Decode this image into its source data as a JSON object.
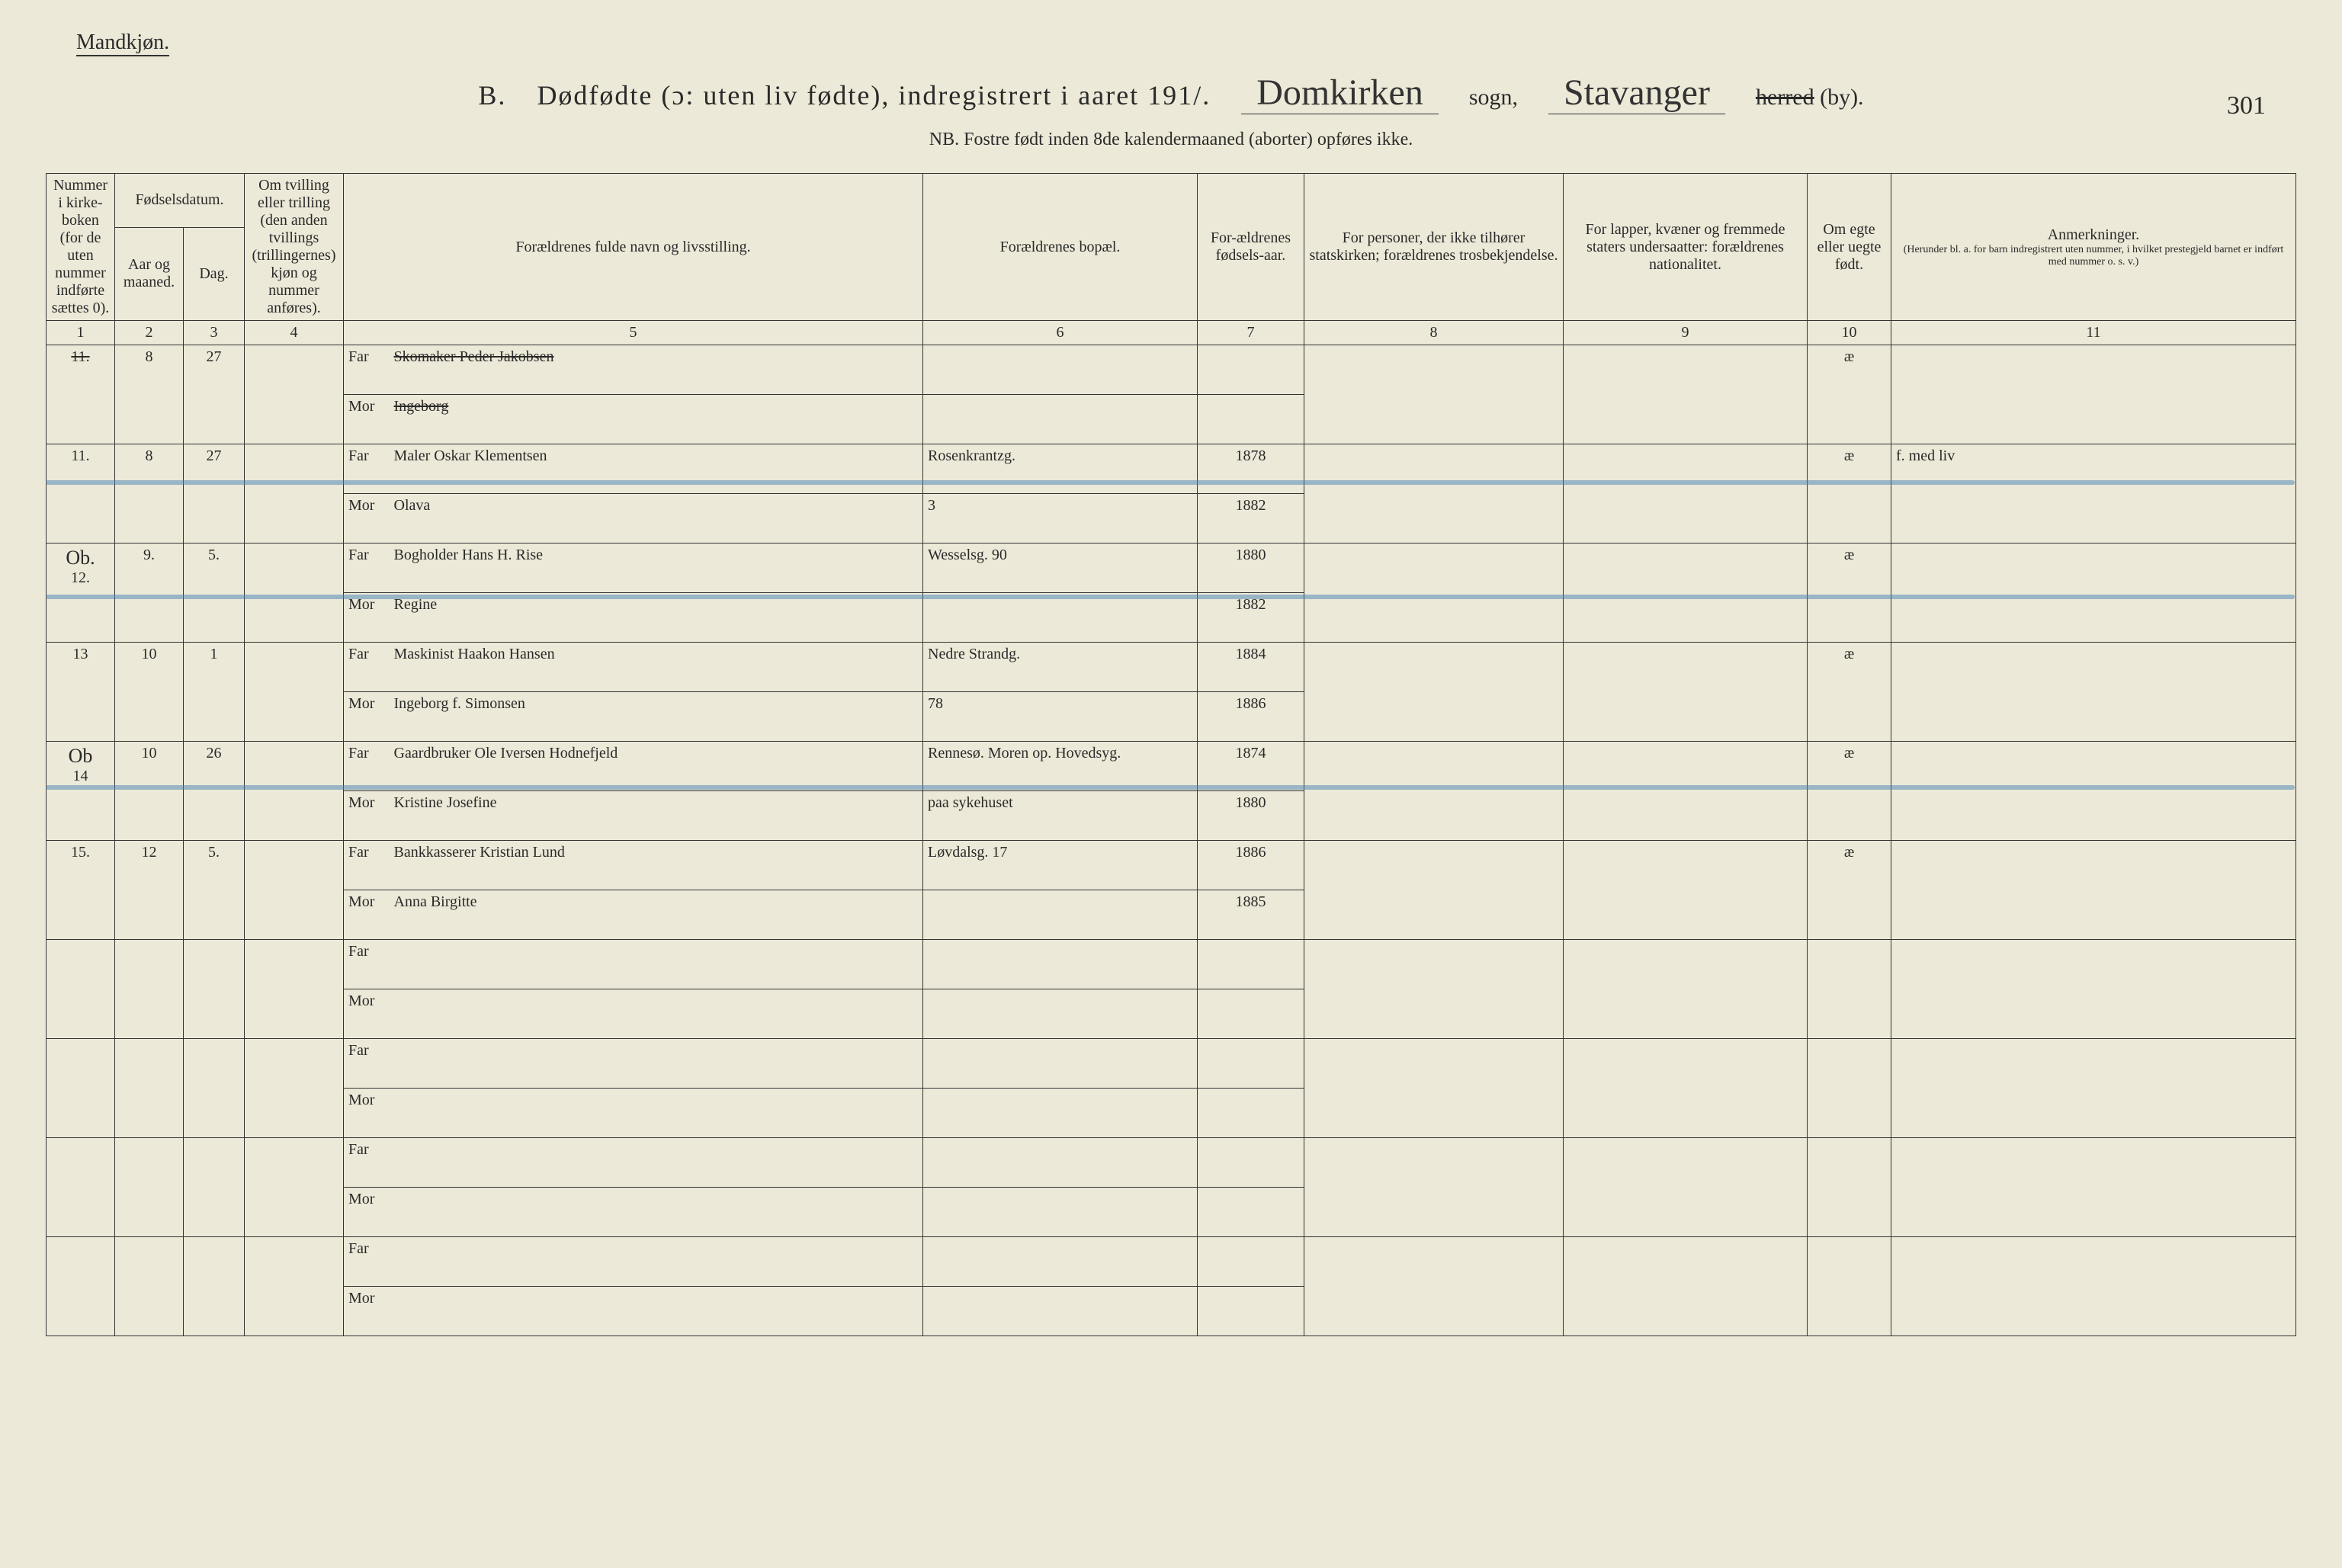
{
  "header": {
    "gender_label": "Mandkjøn.",
    "section_letter": "B.",
    "title": "Dødfødte (ɔ: uten liv fødte), indregistrert i aaret 191",
    "year_suffix": "/.",
    "sogn_hand": "Domkirken",
    "sogn_label": "sogn,",
    "herred_hand": "Stavanger",
    "herred_strike": "herred",
    "herred_suffix": "(by).",
    "page_number": "301",
    "subtitle": "NB.  Fostre født inden 8de kalendermaaned (aborter) opføres ikke."
  },
  "columns": {
    "c1": "Nummer i kirke-boken (for de uten nummer indførte sættes 0).",
    "c2a": "Fødselsdatum.",
    "c2_aar": "Aar og maaned.",
    "c2_dag": "Dag.",
    "c4": "Om tvilling eller trilling (den anden tvillings (trillingernes) kjøn og nummer anføres).",
    "c5": "Forældrenes fulde navn og livsstilling.",
    "c6": "Forældrenes bopæl.",
    "c7": "For-ældrenes fødsels-aar.",
    "c8": "For personer, der ikke tilhører statskirken; forældrenes trosbekjendelse.",
    "c9": "For lapper, kvæner og fremmede staters undersaatter: forældrenes nationalitet.",
    "c10": "Om egte eller uegte født.",
    "c11_title": "Anmerkninger.",
    "c11_sub": "(Herunder bl. a. for barn indregistrert uten nummer, i hvilket prestegjeld barnet er indført med nummer o. s. v.)"
  },
  "colnums": [
    "1",
    "2",
    "3",
    "4",
    "5",
    "6",
    "7",
    "8",
    "9",
    "10",
    "11"
  ],
  "far": "Far",
  "mor": "Mor",
  "rows": [
    {
      "num": "11.",
      "num_struck": true,
      "month": "8",
      "day": "27",
      "far_name": "Skomaker Peder Jakobsen",
      "far_struck": true,
      "mor_name": "Ingeborg",
      "mor_struck": true,
      "bopal_far": "",
      "bopal_mor": "",
      "year_far": "",
      "year_mor": "",
      "egte": "æ",
      "remark": ""
    },
    {
      "num": "11.",
      "month": "8",
      "day": "27",
      "far_name": "Maler Oskar Klementsen",
      "mor_name": "Olava",
      "bopal_far": "Rosenkrantzg.",
      "bopal_mor": "3",
      "year_far": "1878",
      "year_mor": "1882",
      "egte": "æ",
      "remark": "f. med liv"
    },
    {
      "num": "12.",
      "num_prefix": "Ob.",
      "month": "9.",
      "day": "5.",
      "far_name": "Bogholder Hans H. Rise",
      "mor_name": "Regine",
      "bopal_far": "Wesselsg. 90",
      "bopal_mor": "",
      "year_far": "1880",
      "year_mor": "1882",
      "egte": "æ",
      "remark": ""
    },
    {
      "num": "13",
      "month": "10",
      "day": "1",
      "far_name": "Maskinist Haakon Hansen",
      "mor_name": "Ingeborg f. Simonsen",
      "bopal_far": "Nedre Strandg.",
      "bopal_mor": "78",
      "year_far": "1884",
      "year_mor": "1886",
      "egte": "æ",
      "remark": ""
    },
    {
      "num": "14",
      "num_prefix": "Ob",
      "month": "10",
      "day": "26",
      "far_name": "Gaardbruker Ole Iversen Hodnefjeld",
      "mor_name": "Kristine Josefine",
      "bopal_far": "Rennesø. Moren op. Hovedsyg.",
      "bopal_mor": "paa sykehuset",
      "year_far": "1874",
      "year_mor": "1880",
      "egte": "æ",
      "remark": ""
    },
    {
      "num": "15.",
      "month": "12",
      "day": "5.",
      "far_name": "Bankkasserer Kristian Lund",
      "mor_name": "Anna Birgitte",
      "bopal_far": "Løvdalsg. 17",
      "bopal_mor": "",
      "year_far": "1886",
      "year_mor": "1885",
      "egte": "æ",
      "remark": ""
    },
    {
      "empty": true
    },
    {
      "empty": true
    },
    {
      "empty": true
    },
    {
      "empty": true
    }
  ],
  "styling": {
    "background": "#ece9d8",
    "line_color": "#333333",
    "hand_color": "#2a2a2a",
    "blue_pencil": "rgba(70,130,180,0.5)"
  }
}
